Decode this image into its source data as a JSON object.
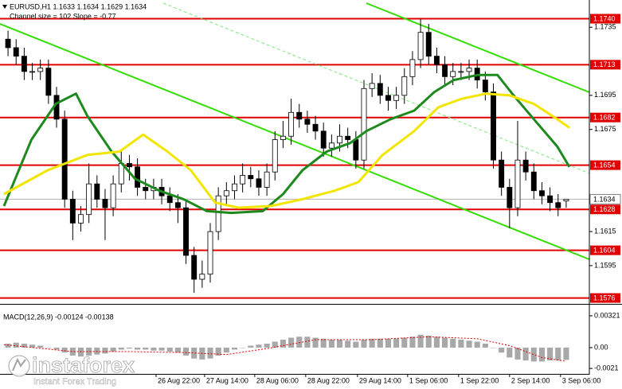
{
  "chart_data": {
    "type": "candlestick",
    "title": "EURUSD,H1  1.1633 1.1634 1.1629 1.1634",
    "subtitle": "Channel size = 102 Slope = -0.77",
    "xlim": [
      -0.5,
      69.5
    ],
    "xticks": [
      {
        "value": 18.3,
        "label": "26 Aug 22:00"
      },
      {
        "value": 24.3,
        "label": "27 Aug 14:00"
      },
      {
        "value": 30.5,
        "label": "28 Aug 06:00"
      },
      {
        "value": 36.8,
        "label": "28 Aug 22:00"
      },
      {
        "value": 43.2,
        "label": "29 Aug 14:00"
      },
      {
        "value": 49.4,
        "label": "1 Sep 06:00"
      },
      {
        "value": 55.7,
        "label": "1 Sep 22:00"
      },
      {
        "value": 62.0,
        "label": "2 Sep 14:00"
      },
      {
        "value": 68.3,
        "label": "3 Sep 06:00"
      }
    ],
    "ylim": [
      1.1573,
      1.1751
    ],
    "yticks": [
      1.1735,
      1.1695,
      1.1675,
      1.1615,
      1.1595
    ],
    "up_color": "#ffffff",
    "down_color": "#000000",
    "open": [
      1.1728,
      1.1723,
      1.1718,
      1.1709,
      1.1709,
      1.1711,
      1.1695,
      1.1681,
      1.1634,
      1.162,
      1.1625,
      1.1643,
      1.1634,
      1.1629,
      1.1643,
      1.1655,
      1.1653,
      1.1641,
      1.1639,
      1.1641,
      1.1636,
      1.1632,
      1.1629,
      1.1601,
      1.1587,
      1.159,
      1.1615,
      1.1636,
      1.1639,
      1.1643,
      1.1648,
      1.1646,
      1.1641,
      1.165,
      1.1669,
      1.1671,
      1.1685,
      1.1681,
      1.1678,
      1.1674,
      1.1664,
      1.1667,
      1.1671,
      1.1669,
      1.1657,
      1.1699,
      1.1702,
      1.1695,
      1.1692,
      1.1695,
      1.1706,
      1.1716,
      1.1732,
      1.1718,
      1.1713,
      1.1706,
      1.1709,
      1.1709,
      1.1711,
      1.1704,
      1.1697,
      1.1657,
      1.1641,
      1.1629,
      1.1657,
      1.165,
      1.1639,
      1.1636,
      1.1632,
      1.1633
    ],
    "high": [
      1.1733,
      1.1728,
      1.1723,
      1.1714,
      1.1716,
      1.1716,
      1.17,
      1.1686,
      1.1639,
      1.163,
      1.1655,
      1.1648,
      1.164,
      1.1648,
      1.1662,
      1.166,
      1.1658,
      1.1646,
      1.1646,
      1.1646,
      1.1641,
      1.1637,
      1.1634,
      1.1606,
      1.1598,
      1.162,
      1.1641,
      1.1644,
      1.1648,
      1.1655,
      1.1653,
      1.1651,
      1.1655,
      1.1674,
      1.168,
      1.1693,
      1.169,
      1.1686,
      1.1683,
      1.1679,
      1.1672,
      1.1678,
      1.1676,
      1.1674,
      1.1704,
      1.1708,
      1.1707,
      1.17,
      1.17,
      1.1711,
      1.1721,
      1.174,
      1.1737,
      1.1723,
      1.1718,
      1.1714,
      1.1714,
      1.1716,
      1.1716,
      1.1709,
      1.1702,
      1.1662,
      1.1646,
      1.168,
      1.1662,
      1.1655,
      1.1644,
      1.1641,
      1.1637,
      1.1634
    ],
    "low": [
      1.1718,
      1.1713,
      1.1704,
      1.1704,
      1.1704,
      1.169,
      1.1676,
      1.1629,
      1.161,
      1.1615,
      1.162,
      1.1629,
      1.161,
      1.1624,
      1.1638,
      1.1645,
      1.1636,
      1.1634,
      1.1634,
      1.1631,
      1.1627,
      1.162,
      1.1596,
      1.1579,
      1.1582,
      1.1585,
      1.161,
      1.1631,
      1.1634,
      1.1638,
      1.1641,
      1.1636,
      1.1636,
      1.1645,
      1.1664,
      1.1666,
      1.1676,
      1.1673,
      1.1669,
      1.1659,
      1.1659,
      1.1662,
      1.1664,
      1.1652,
      1.1652,
      1.1694,
      1.169,
      1.1686,
      1.1687,
      1.169,
      1.1701,
      1.1711,
      1.1713,
      1.1708,
      1.1701,
      1.1701,
      1.1704,
      1.1704,
      1.1699,
      1.1692,
      1.1652,
      1.1636,
      1.1617,
      1.1624,
      1.1645,
      1.1634,
      1.1631,
      1.1627,
      1.1624,
      1.1629
    ],
    "close": [
      1.1723,
      1.1718,
      1.1709,
      1.1709,
      1.1711,
      1.1695,
      1.1681,
      1.1634,
      1.162,
      1.1625,
      1.1643,
      1.1634,
      1.1629,
      1.1643,
      1.1655,
      1.1653,
      1.1641,
      1.1639,
      1.1641,
      1.1636,
      1.1632,
      1.1629,
      1.1601,
      1.1587,
      1.159,
      1.1615,
      1.1636,
      1.1639,
      1.1643,
      1.1648,
      1.1646,
      1.1641,
      1.165,
      1.1669,
      1.1671,
      1.1685,
      1.1681,
      1.1678,
      1.1674,
      1.1664,
      1.1667,
      1.1671,
      1.1669,
      1.1657,
      1.1699,
      1.1702,
      1.1695,
      1.1692,
      1.1695,
      1.1706,
      1.1716,
      1.1732,
      1.1718,
      1.1713,
      1.1706,
      1.1709,
      1.1709,
      1.1711,
      1.1704,
      1.1697,
      1.1657,
      1.1641,
      1.1629,
      1.1657,
      1.165,
      1.1639,
      1.1636,
      1.1632,
      1.1629,
      1.1634
    ],
    "overlays": [
      {
        "color": "#1e8a1e",
        "x": [
          -0.5,
          2.9,
          5.9,
          8.4,
          9.8,
          12.8,
          15.7,
          18.7,
          21.7,
          24.6,
          27.6,
          31.5,
          34.0,
          36.4,
          39.4,
          42.3,
          44.3,
          47.3,
          50.2,
          52.7,
          55.1,
          58.1,
          60.5,
          62.5,
          65.0,
          67.9,
          69.4
        ],
        "values": [
          1.163,
          1.1669,
          1.169,
          1.1696,
          1.1683,
          1.1662,
          1.1646,
          1.1639,
          1.1634,
          1.1627,
          1.1626,
          1.1627,
          1.1637,
          1.1651,
          1.1662,
          1.1667,
          1.1674,
          1.1681,
          1.1686,
          1.1697,
          1.1704,
          1.1707,
          1.1707,
          1.1695,
          1.1681,
          1.1665,
          1.1653
        ]
      },
      {
        "color": "#f2e600",
        "x": [
          -0.5,
          4.9,
          9.8,
          13.8,
          16.7,
          19.7,
          22.6,
          25.6,
          28.5,
          32.5,
          36.4,
          40.4,
          43.3,
          46.3,
          50.2,
          53.2,
          56.1,
          59.1,
          62.0,
          65.0,
          67.9,
          69.4
        ],
        "values": [
          1.1637,
          1.1651,
          1.166,
          1.1662,
          1.1672,
          1.1662,
          1.1651,
          1.1632,
          1.1629,
          1.163,
          1.1634,
          1.1639,
          1.1644,
          1.166,
          1.1674,
          1.1688,
          1.1693,
          1.1696,
          1.1695,
          1.169,
          1.1681,
          1.1676
        ]
      }
    ],
    "level_color": "#e00000",
    "levels": [
      {
        "value": 1.174,
        "label": "1.1740"
      },
      1.1713,
      1.1682,
      1.1654,
      1.1628,
      1.1604,
      1.1576
    ],
    "last_price": 1.1634,
    "macd": {
      "title": "MACD(12,26,9) -0.00124 -0.00138",
      "ylim": [
        -0.00265,
        0.00417
      ],
      "yticks": [
        0.00321,
        {
          "value": 0,
          "label": "0.00"
        },
        -0.0021
      ],
      "histogram_color": "#a8a8a8",
      "histogram": [
        0.0004,
        0.0005,
        0.0004,
        0.0003,
        0.0002,
        0.0,
        -0.0002,
        -0.0005,
        -0.0008,
        -0.0009,
        -0.0008,
        -0.0007,
        -0.0006,
        -0.0004,
        -0.0002,
        -0.0001,
        -0.0002,
        -0.0002,
        -0.0003,
        -0.0003,
        -0.0004,
        -0.0005,
        -0.0008,
        -0.0011,
        -0.0012,
        -0.0011,
        -0.0008,
        -0.0005,
        -0.0002,
        0.0,
        0.0002,
        0.0003,
        0.0004,
        0.0006,
        0.0008,
        0.001,
        0.0011,
        0.0011,
        0.001,
        0.0009,
        0.0008,
        0.0008,
        0.0007,
        0.0006,
        0.0008,
        0.0009,
        0.0009,
        0.0009,
        0.0009,
        0.001,
        0.0011,
        0.0013,
        0.0012,
        0.0011,
        0.001,
        0.0009,
        0.0008,
        0.0007,
        0.0006,
        0.0004,
        0.0,
        -0.0005,
        -0.001,
        -0.0012,
        -0.0013,
        -0.0014,
        -0.0014,
        -0.0013,
        -0.0013,
        -0.00124
      ],
      "signal": {
        "color": "#e00000",
        "x": [
          -0.5,
          8,
          15,
          22,
          27,
          32,
          38,
          45,
          52,
          58,
          62,
          66,
          69
        ],
        "values": [
          0.0003,
          -0.0004,
          -0.0004,
          -0.0005,
          -0.0007,
          -0.0001,
          0.0008,
          0.0008,
          0.0011,
          0.0009,
          0.0002,
          -0.001,
          -0.00138
        ]
      }
    }
  },
  "watermark": {
    "brand": "instaforex",
    "tagline": "Instant Forex Trading"
  }
}
